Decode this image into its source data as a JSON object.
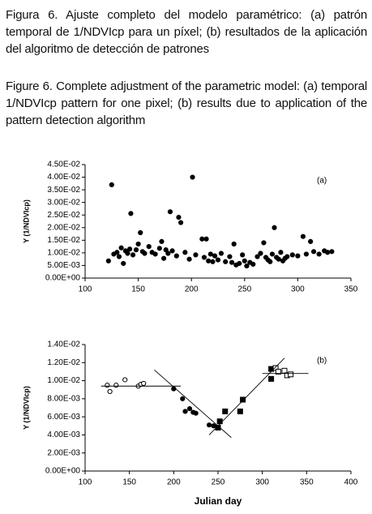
{
  "caption_es": "Figura 6. Ajuste completo del modelo paramétrico: (a) patrón temporal de 1/NDVIcp para un píxel; (b) resultados de la aplicación del algoritmo de detección de patrones",
  "caption_en": "Figure 6. Complete adjustment of the parametric model: (a) temporal 1/NDVIcp pattern for one pixel; (b) results due to application of the pattern detection algorithm",
  "chart_data": [
    {
      "type": "scatter",
      "annotation": "(a)",
      "y_label": "Y (1/NDVIcp)",
      "color": "#000000",
      "x": [
        122,
        125,
        127,
        130,
        132,
        134,
        136,
        138,
        140,
        142,
        143,
        145,
        148,
        150,
        152,
        154,
        156,
        160,
        163,
        166,
        170,
        172,
        174,
        176,
        178,
        180,
        182,
        186,
        188,
        190,
        194,
        198,
        201,
        204,
        210,
        212,
        214,
        216,
        218,
        220,
        222,
        225,
        228,
        232,
        236,
        238,
        240,
        242,
        245,
        248,
        250,
        252,
        255,
        258,
        262,
        265,
        268,
        270,
        272,
        274,
        276,
        278,
        280,
        282,
        284,
        286,
        288,
        290,
        295,
        300,
        305,
        308,
        312,
        315,
        320,
        325,
        328,
        332
      ],
      "values": [
        0.0068,
        0.037,
        0.0095,
        0.0102,
        0.0085,
        0.012,
        0.0058,
        0.0108,
        0.0098,
        0.0115,
        0.0256,
        0.0092,
        0.0112,
        0.0135,
        0.018,
        0.0105,
        0.0098,
        0.0125,
        0.0102,
        0.0095,
        0.0118,
        0.0145,
        0.0078,
        0.0112,
        0.0098,
        0.0263,
        0.0108,
        0.0088,
        0.0241,
        0.022,
        0.0102,
        0.0075,
        0.04,
        0.0092,
        0.0155,
        0.0082,
        0.0155,
        0.0068,
        0.0095,
        0.0065,
        0.0088,
        0.0072,
        0.0098,
        0.0065,
        0.0085,
        0.0062,
        0.0135,
        0.0052,
        0.0058,
        0.0092,
        0.0068,
        0.0048,
        0.0062,
        0.0055,
        0.0085,
        0.0098,
        0.014,
        0.0082,
        0.0072,
        0.0065,
        0.0095,
        0.02,
        0.0082,
        0.0075,
        0.0102,
        0.0068,
        0.0078,
        0.0085,
        0.0092,
        0.0088,
        0.0165,
        0.0095,
        0.0145,
        0.0105,
        0.0095,
        0.0108,
        0.0102,
        0.0105
      ],
      "xlim": [
        100,
        350
      ],
      "xticks": [
        100,
        150,
        200,
        250,
        300,
        350
      ],
      "ylim": [
        0,
        0.045
      ],
      "yticks": [
        {
          "value": 0,
          "label": "0.00E+00"
        },
        {
          "value": 0.005,
          "label": "5.00E-03"
        },
        {
          "value": 0.01,
          "label": "1.00E-02"
        },
        {
          "value": 0.015,
          "label": "1.50E-02"
        },
        {
          "value": 0.02,
          "label": "2.00E-02"
        },
        {
          "value": 0.025,
          "label": "2.50E-02"
        },
        {
          "value": 0.03,
          "label": "3.00E-02"
        },
        {
          "value": 0.035,
          "label": "3.50E-02"
        },
        {
          "value": 0.04,
          "label": "4.00E-02"
        },
        {
          "value": 0.045,
          "label": "4.50E-02"
        }
      ]
    },
    {
      "type": "scatter",
      "annotation": "(b)",
      "y_label": "Y (1/NDVIcp)",
      "x_label": "Julian day",
      "series": [
        {
          "marker": "circle",
          "filled": false,
          "color": "#000000",
          "x": [
            125,
            128,
            135,
            145,
            160,
            163,
            166
          ],
          "values": [
            0.0095,
            0.0088,
            0.0095,
            0.0101,
            0.0094,
            0.0096,
            0.0097
          ]
        },
        {
          "marker": "circle",
          "filled": true,
          "color": "#000000",
          "x": [
            200,
            210,
            213,
            218,
            222,
            225,
            240,
            245
          ],
          "values": [
            0.0091,
            0.008,
            0.0066,
            0.0069,
            0.0065,
            0.0064,
            0.0051,
            0.005
          ]
        },
        {
          "marker": "square",
          "filled": true,
          "color": "#000000",
          "x": [
            250,
            252,
            258,
            275,
            278,
            310,
            310
          ],
          "values": [
            0.0048,
            0.0055,
            0.0066,
            0.0066,
            0.0079,
            0.0113,
            0.0102
          ]
        },
        {
          "marker": "square",
          "filled": false,
          "color": "#000000",
          "x": [
            315,
            318,
            325,
            328,
            332
          ],
          "values": [
            0.0114,
            0.011,
            0.0111,
            0.0106,
            0.0107
          ]
        }
      ],
      "fit_lines": [
        {
          "x": [
            118,
            208
          ],
          "values": [
            0.0094,
            0.0094
          ]
        },
        {
          "x": [
            178,
            265
          ],
          "values": [
            0.0112,
            0.0037
          ]
        },
        {
          "x": [
            240,
            325
          ],
          "values": [
            0.004,
            0.0125
          ]
        },
        {
          "x": [
            300,
            352
          ],
          "values": [
            0.0108,
            0.0108
          ]
        }
      ],
      "xlim": [
        100,
        400
      ],
      "xticks": [
        100,
        150,
        200,
        250,
        300,
        350,
        400
      ],
      "ylim": [
        0,
        0.014
      ],
      "yticks": [
        {
          "value": 0,
          "label": "0.00E+00"
        },
        {
          "value": 0.002,
          "label": "2.00E-03"
        },
        {
          "value": 0.004,
          "label": "4.00E-03"
        },
        {
          "value": 0.006,
          "label": "6.00E-03"
        },
        {
          "value": 0.008,
          "label": "8.00E-03"
        },
        {
          "value": 0.01,
          "label": "1.00E-02"
        },
        {
          "value": 0.012,
          "label": "1.20E-02"
        },
        {
          "value": 0.014,
          "label": "1.40E-02"
        }
      ]
    }
  ]
}
